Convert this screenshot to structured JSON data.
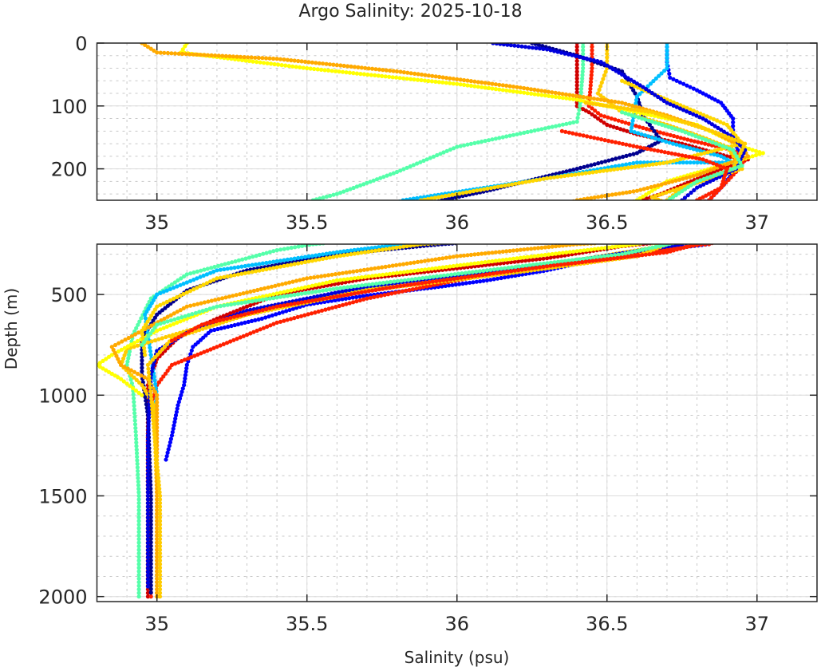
{
  "chart_data": {
    "type": "scatter",
    "title": "Argo Salinity: 2025-10-18",
    "xlabel": "Salinity (psu)",
    "ylabel": "Depth (m)",
    "grid": true,
    "minor_grid": true,
    "legend": "none",
    "panels": [
      {
        "name": "upper",
        "xlim": [
          34.8,
          37.2
        ],
        "ylim": [
          0,
          250
        ],
        "y_reversed": true,
        "xticks": [
          35,
          35.5,
          36,
          36.5,
          37
        ],
        "xtick_labels": [
          "35",
          "35.5",
          "36",
          "36.5",
          "37"
        ],
        "yticks": [
          0,
          100,
          200
        ],
        "ytick_labels": [
          "0",
          "100",
          "200"
        ]
      },
      {
        "name": "lower",
        "xlim": [
          34.8,
          37.2
        ],
        "ylim": [
          250,
          2025
        ],
        "y_reversed": true,
        "xticks": [
          35,
          35.5,
          36,
          36.5,
          37
        ],
        "xtick_labels": [
          "35",
          "35.5",
          "36",
          "36.5",
          "37"
        ],
        "yticks": [
          500,
          1000,
          1500,
          2000
        ],
        "ytick_labels": [
          "500",
          "1000",
          "1500",
          "2000"
        ]
      }
    ],
    "series": [
      {
        "name": "profile-1",
        "color": "#0000ff",
        "points": [
          [
            36.7,
            0
          ],
          [
            36.7,
            30
          ],
          [
            36.71,
            55
          ],
          [
            36.8,
            75
          ],
          [
            36.88,
            95
          ],
          [
            36.92,
            120
          ],
          [
            36.92,
            150
          ],
          [
            36.94,
            175
          ],
          [
            36.93,
            200
          ],
          [
            36.89,
            225
          ],
          [
            36.84,
            250
          ],
          [
            36.55,
            300
          ],
          [
            36.42,
            340
          ],
          [
            36.3,
            380
          ],
          [
            36.1,
            430
          ],
          [
            35.95,
            460
          ],
          [
            35.7,
            505
          ],
          [
            35.5,
            550
          ],
          [
            35.35,
            620
          ],
          [
            35.18,
            680
          ],
          [
            35.12,
            760
          ],
          [
            35.1,
            850
          ],
          [
            35.09,
            950
          ],
          [
            35.07,
            1050
          ],
          [
            35.05,
            1200
          ],
          [
            35.03,
            1320
          ]
        ]
      },
      {
        "name": "profile-2",
        "color": "#d00000",
        "points": [
          [
            36.4,
            0
          ],
          [
            36.4,
            40
          ],
          [
            36.4,
            100
          ],
          [
            36.44,
            110
          ],
          [
            36.5,
            130
          ],
          [
            36.6,
            145
          ],
          [
            36.75,
            160
          ],
          [
            36.9,
            180
          ],
          [
            36.97,
            185
          ],
          [
            36.88,
            200
          ],
          [
            36.78,
            220
          ],
          [
            36.68,
            240
          ],
          [
            36.55,
            260
          ],
          [
            36.3,
            320
          ],
          [
            35.7,
            420
          ],
          [
            35.4,
            500
          ],
          [
            35.2,
            620
          ],
          [
            35.08,
            700
          ],
          [
            35.0,
            820
          ],
          [
            34.97,
            950
          ],
          [
            34.97,
            1100
          ],
          [
            34.97,
            1500
          ],
          [
            34.97,
            2000
          ]
        ]
      },
      {
        "name": "profile-3",
        "color": "#ff2000",
        "points": [
          [
            36.45,
            0
          ],
          [
            36.45,
            40
          ],
          [
            36.44,
            100
          ],
          [
            36.48,
            115
          ],
          [
            36.62,
            135
          ],
          [
            36.78,
            155
          ],
          [
            36.92,
            170
          ],
          [
            36.96,
            185
          ],
          [
            36.93,
            205
          ],
          [
            36.88,
            230
          ],
          [
            36.84,
            250
          ],
          [
            36.8,
            255
          ],
          [
            36.5,
            320
          ],
          [
            36.1,
            400
          ],
          [
            35.7,
            520
          ],
          [
            35.4,
            640
          ],
          [
            35.2,
            760
          ],
          [
            35.05,
            850
          ],
          [
            35.0,
            950
          ],
          [
            34.97,
            1100
          ],
          [
            34.97,
            1500
          ],
          [
            34.98,
            2000
          ]
        ]
      },
      {
        "name": "profile-4",
        "color": "#55ffaa",
        "points": [
          [
            36.42,
            0
          ],
          [
            36.42,
            40
          ],
          [
            36.41,
            100
          ],
          [
            36.4,
            125
          ],
          [
            36.2,
            145
          ],
          [
            36.0,
            165
          ],
          [
            35.8,
            205
          ],
          [
            35.6,
            240
          ],
          [
            35.52,
            250
          ],
          [
            35.4,
            280
          ],
          [
            35.1,
            400
          ],
          [
            34.98,
            520
          ],
          [
            34.92,
            700
          ],
          [
            34.9,
            850
          ],
          [
            34.92,
            960
          ],
          [
            34.93,
            1200
          ],
          [
            34.94,
            1500
          ],
          [
            34.94,
            2000
          ]
        ]
      },
      {
        "name": "profile-5",
        "color": "#000090",
        "points": [
          [
            36.25,
            0
          ],
          [
            36.4,
            20
          ],
          [
            36.55,
            45
          ],
          [
            36.6,
            85
          ],
          [
            36.62,
            115
          ],
          [
            36.65,
            135
          ],
          [
            36.68,
            155
          ],
          [
            36.6,
            175
          ],
          [
            36.4,
            200
          ],
          [
            36.1,
            235
          ],
          [
            35.95,
            250
          ],
          [
            35.6,
            300
          ],
          [
            35.3,
            380
          ],
          [
            35.1,
            480
          ],
          [
            35.0,
            600
          ],
          [
            34.95,
            720
          ],
          [
            34.95,
            900
          ],
          [
            34.97,
            1100
          ],
          [
            34.98,
            1500
          ],
          [
            34.98,
            1980
          ]
        ]
      },
      {
        "name": "profile-6",
        "color": "#00bfff",
        "points": [
          [
            36.7,
            0
          ],
          [
            36.7,
            40
          ],
          [
            36.6,
            85
          ],
          [
            36.58,
            140
          ],
          [
            36.72,
            160
          ],
          [
            36.88,
            180
          ],
          [
            36.92,
            190
          ],
          [
            36.6,
            190
          ],
          [
            36.3,
            215
          ],
          [
            35.82,
            250
          ],
          [
            35.6,
            290
          ],
          [
            35.2,
            380
          ],
          [
            35.0,
            500
          ],
          [
            34.96,
            600
          ],
          [
            34.98,
            800
          ],
          [
            35.0,
            1000
          ],
          [
            34.99,
            1100
          ]
        ]
      },
      {
        "name": "profile-7",
        "color": "#ffcc00",
        "points": [
          [
            36.5,
            0
          ],
          [
            36.5,
            40
          ],
          [
            36.47,
            80
          ],
          [
            36.55,
            110
          ],
          [
            36.7,
            130
          ],
          [
            36.82,
            150
          ],
          [
            36.9,
            165
          ],
          [
            36.95,
            200
          ],
          [
            36.78,
            225
          ],
          [
            36.65,
            245
          ],
          [
            36.7,
            255
          ],
          [
            36.4,
            330
          ],
          [
            35.8,
            440
          ],
          [
            35.4,
            560
          ],
          [
            35.1,
            680
          ],
          [
            34.9,
            770
          ],
          [
            34.88,
            850
          ],
          [
            34.95,
            950
          ],
          [
            34.99,
            1050
          ],
          [
            35.0,
            1500
          ],
          [
            35.0,
            2000
          ]
        ]
      },
      {
        "name": "profile-8",
        "color": "#ffff00",
        "points": [
          [
            35.1,
            0
          ],
          [
            35.08,
            15
          ],
          [
            35.5,
            40
          ],
          [
            36.0,
            65
          ],
          [
            36.4,
            90
          ],
          [
            36.6,
            110
          ],
          [
            36.8,
            130
          ],
          [
            36.95,
            165
          ],
          [
            37.02,
            175
          ],
          [
            36.95,
            185
          ],
          [
            36.7,
            220
          ],
          [
            36.6,
            250
          ],
          [
            36.2,
            320
          ],
          [
            35.6,
            430
          ],
          [
            35.2,
            560
          ],
          [
            35.0,
            680
          ],
          [
            34.85,
            800
          ],
          [
            34.8,
            850
          ],
          [
            34.88,
            920
          ],
          [
            34.95,
            1000
          ]
        ]
      },
      {
        "name": "profile-9",
        "color": "#ffaa00",
        "points": [
          [
            34.95,
            0
          ],
          [
            35.0,
            15
          ],
          [
            35.4,
            25
          ],
          [
            35.8,
            45
          ],
          [
            36.2,
            70
          ],
          [
            36.55,
            95
          ],
          [
            36.7,
            115
          ],
          [
            36.85,
            140
          ],
          [
            36.95,
            165
          ],
          [
            36.97,
            180
          ],
          [
            36.8,
            210
          ],
          [
            36.6,
            235
          ],
          [
            36.4,
            250
          ],
          [
            36.0,
            310
          ],
          [
            35.5,
            420
          ],
          [
            35.1,
            560
          ],
          [
            34.95,
            680
          ],
          [
            34.85,
            760
          ],
          [
            34.88,
            850
          ],
          [
            34.97,
            920
          ],
          [
            35.0,
            1000
          ],
          [
            35.0,
            1500
          ],
          [
            35.0,
            2000
          ]
        ]
      },
      {
        "name": "profile-10",
        "color": "#ffd700",
        "points": [
          [
            36.55,
            60
          ],
          [
            36.7,
            90
          ],
          [
            36.9,
            130
          ],
          [
            36.95,
            160
          ],
          [
            36.7,
            190
          ],
          [
            36.3,
            215
          ],
          [
            35.88,
            250
          ],
          [
            35.6,
            310
          ],
          [
            35.2,
            420
          ],
          [
            35.0,
            560
          ],
          [
            34.95,
            680
          ],
          [
            34.96,
            800
          ]
        ]
      },
      {
        "name": "profile-11",
        "color": "#0000dd",
        "points": [
          [
            36.12,
            0
          ],
          [
            36.3,
            10
          ],
          [
            36.48,
            30
          ],
          [
            36.62,
            70
          ],
          [
            36.7,
            95
          ],
          [
            36.82,
            120
          ],
          [
            36.92,
            150
          ],
          [
            36.96,
            170
          ],
          [
            36.93,
            200
          ],
          [
            36.8,
            230
          ],
          [
            36.75,
            250
          ],
          [
            36.4,
            330
          ],
          [
            35.7,
            460
          ],
          [
            35.3,
            580
          ],
          [
            35.1,
            690
          ],
          [
            35.0,
            780
          ],
          [
            34.98,
            900
          ],
          [
            34.97,
            1200
          ],
          [
            34.97,
            1500
          ],
          [
            34.97,
            1950
          ]
        ]
      },
      {
        "name": "profile-12",
        "color": "#ffcc00",
        "points": [
          [
            36.43,
            95
          ],
          [
            36.65,
            110
          ],
          [
            36.85,
            140
          ],
          [
            36.96,
            160
          ],
          [
            36.92,
            200
          ],
          [
            36.75,
            230
          ],
          [
            36.7,
            250
          ],
          [
            36.6,
            310
          ],
          [
            36.2,
            390
          ],
          [
            35.7,
            480
          ],
          [
            35.3,
            600
          ],
          [
            35.05,
            720
          ],
          [
            34.97,
            850
          ],
          [
            34.98,
            1000
          ],
          [
            35.01,
            1500
          ],
          [
            35.01,
            2000
          ]
        ]
      },
      {
        "name": "profile-13",
        "color": "#55ffaa",
        "points": [
          [
            36.55,
            110
          ],
          [
            36.75,
            140
          ],
          [
            36.92,
            170
          ],
          [
            36.95,
            195
          ],
          [
            36.8,
            220
          ],
          [
            36.72,
            245
          ],
          [
            36.55,
            300
          ],
          [
            36.1,
            380
          ],
          [
            35.6,
            470
          ],
          [
            35.2,
            560
          ],
          [
            35.0,
            650
          ],
          [
            34.95,
            750
          ]
        ]
      },
      {
        "name": "profile-14",
        "color": "#ff2000",
        "points": [
          [
            36.35,
            140
          ],
          [
            36.6,
            165
          ],
          [
            36.82,
            185
          ],
          [
            36.9,
            200
          ],
          [
            36.88,
            230
          ],
          [
            36.8,
            250
          ],
          [
            36.7,
            290
          ],
          [
            36.3,
            360
          ],
          [
            35.8,
            460
          ],
          [
            35.4,
            560
          ],
          [
            35.15,
            650
          ],
          [
            35.05,
            730
          ]
        ]
      }
    ]
  }
}
